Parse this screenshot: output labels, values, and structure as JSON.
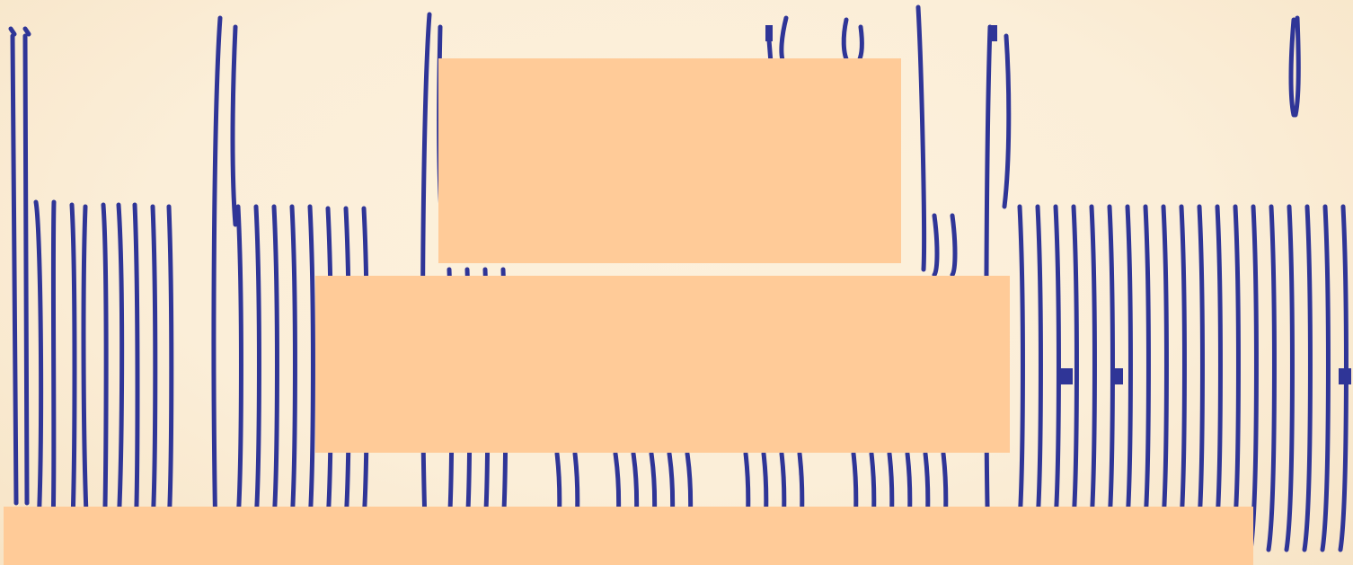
{
  "slide": {
    "text_color": "#2f3597",
    "background_color": "#fbeed8",
    "panel_color": "#ffcb98",
    "panels": [
      {
        "name": "top-panel",
        "text": ""
      },
      {
        "name": "middle-panel",
        "text": ""
      },
      {
        "name": "bottom-panel",
        "text": ""
      }
    ]
  }
}
